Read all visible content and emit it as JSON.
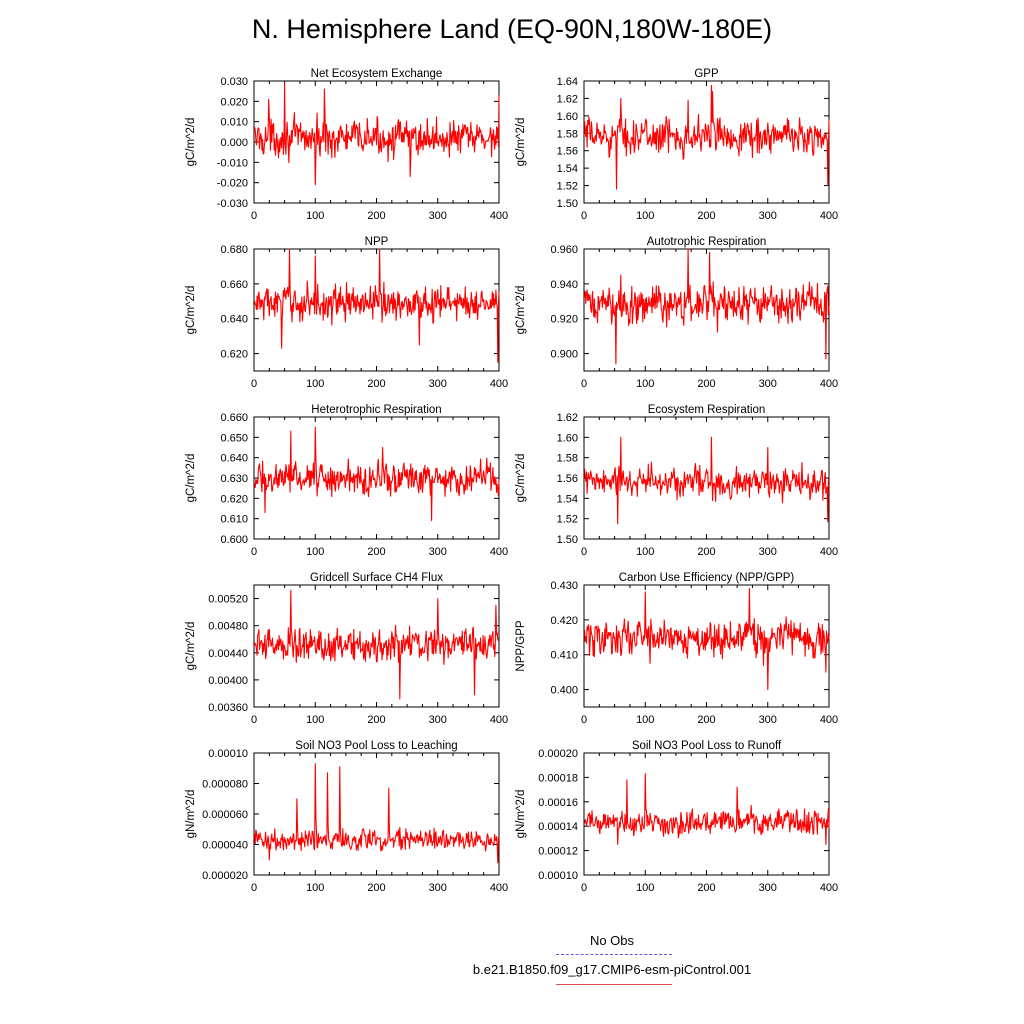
{
  "page": {
    "title": "N. Hemisphere Land (EQ-90N,180W-180E)",
    "legend": {
      "obs_label": "No Obs",
      "model_label": "b.e21.B1850.f09_g17.CMIP6-esm-piControl.001",
      "obs_color": "#5a5ad8",
      "model_color": "#e05050"
    }
  },
  "chart_data": [
    {
      "type": "line",
      "title": "Net Ecosystem Exchange",
      "ylabel": "gC/m^2/d",
      "xlabel": "",
      "xlim": [
        0,
        400
      ],
      "ylim": [
        -0.03,
        0.03
      ],
      "xticks": [
        "0",
        "100",
        "200",
        "300",
        "400"
      ],
      "yticks": [
        "-0.030",
        "-0.020",
        "-0.010",
        "0.000",
        "0.010",
        "0.020",
        "0.030"
      ],
      "series": [
        {
          "color": "#ff0000",
          "x_start": 1,
          "x_end": 400,
          "mean": 0.002,
          "amplitude": 0.008,
          "peaks": [
            [
              50,
              0.029
            ],
            [
              100,
              -0.021
            ],
            [
              115,
              0.026
            ],
            [
              400,
              0.023
            ],
            [
              255,
              -0.017
            ],
            [
              24,
              0.021
            ]
          ]
        }
      ]
    },
    {
      "type": "line",
      "title": "GPP",
      "ylabel": "gC/m^2/d",
      "xlabel": "",
      "xlim": [
        0,
        400
      ],
      "ylim": [
        1.5,
        1.64
      ],
      "xticks": [
        "0",
        "100",
        "200",
        "300",
        "400"
      ],
      "yticks": [
        "1.50",
        "1.52",
        "1.54",
        "1.56",
        "1.58",
        "1.60",
        "1.62",
        "1.64"
      ],
      "series": [
        {
          "color": "#ff0000",
          "x_start": 1,
          "x_end": 400,
          "mean": 1.577,
          "amplitude": 0.018,
          "peaks": [
            [
              53,
              1.516
            ],
            [
              208,
              1.635
            ],
            [
              210,
              1.628
            ],
            [
              398,
              1.52
            ],
            [
              60,
              1.62
            ],
            [
              170,
              1.618
            ]
          ]
        }
      ]
    },
    {
      "type": "line",
      "title": "NPP",
      "ylabel": "gC/m^2/d",
      "xlabel": "",
      "xlim": [
        0,
        400
      ],
      "ylim": [
        0.61,
        0.68
      ],
      "xticks": [
        "0",
        "100",
        "200",
        "300",
        "400"
      ],
      "yticks": [
        "0.620",
        "0.640",
        "0.660",
        "0.680"
      ],
      "series": [
        {
          "color": "#ff0000",
          "x_start": 1,
          "x_end": 400,
          "mean": 0.649,
          "amplitude": 0.009,
          "peaks": [
            [
              58,
              0.68
            ],
            [
              205,
              0.68
            ],
            [
              398,
              0.615
            ],
            [
              45,
              0.623
            ],
            [
              100,
              0.676
            ],
            [
              270,
              0.625
            ]
          ]
        }
      ]
    },
    {
      "type": "line",
      "title": "Autotrophic Respiration",
      "ylabel": "gC/m^2/d",
      "xlabel": "",
      "xlim": [
        0,
        400
      ],
      "ylim": [
        0.89,
        0.96
      ],
      "xticks": [
        "0",
        "100",
        "200",
        "300",
        "400"
      ],
      "yticks": [
        "0.900",
        "0.920",
        "0.940",
        "0.960"
      ],
      "series": [
        {
          "color": "#ff0000",
          "x_start": 1,
          "x_end": 400,
          "mean": 0.928,
          "amplitude": 0.01,
          "peaks": [
            [
              52,
              0.894
            ],
            [
              170,
              0.96
            ],
            [
              205,
              0.958
            ],
            [
              395,
              0.897
            ],
            [
              60,
              0.945
            ]
          ]
        }
      ]
    },
    {
      "type": "line",
      "title": "Heterotrophic Respiration",
      "ylabel": "gC/m^2/d",
      "xlabel": "",
      "xlim": [
        0,
        400
      ],
      "ylim": [
        0.6,
        0.66
      ],
      "xticks": [
        "0",
        "100",
        "200",
        "300",
        "400"
      ],
      "yticks": [
        "0.600",
        "0.610",
        "0.620",
        "0.630",
        "0.640",
        "0.650",
        "0.660"
      ],
      "series": [
        {
          "color": "#ff0000",
          "x_start": 1,
          "x_end": 400,
          "mean": 0.63,
          "amplitude": 0.007,
          "peaks": [
            [
              60,
              0.653
            ],
            [
              100,
              0.655
            ],
            [
              290,
              0.609
            ],
            [
              18,
              0.613
            ],
            [
              210,
              0.645
            ]
          ]
        }
      ]
    },
    {
      "type": "line",
      "title": "Ecosystem Respiration",
      "ylabel": "gC/m^2/d",
      "xlabel": "",
      "xlim": [
        0,
        400
      ],
      "ylim": [
        1.5,
        1.62
      ],
      "xticks": [
        "0",
        "100",
        "200",
        "300",
        "400"
      ],
      "yticks": [
        "1.50",
        "1.52",
        "1.54",
        "1.56",
        "1.58",
        "1.60",
        "1.62"
      ],
      "series": [
        {
          "color": "#ff0000",
          "x_start": 1,
          "x_end": 400,
          "mean": 1.556,
          "amplitude": 0.014,
          "peaks": [
            [
              55,
              1.515
            ],
            [
              208,
              1.6
            ],
            [
              398,
              1.517
            ],
            [
              60,
              1.6
            ],
            [
              300,
              1.59
            ]
          ]
        }
      ]
    },
    {
      "type": "line",
      "title": "Gridcell Surface CH4 Flux",
      "ylabel": "gC/m^2/d",
      "xlabel": "",
      "xlim": [
        0,
        400
      ],
      "ylim": [
        0.0036,
        0.0054
      ],
      "xticks": [
        "0",
        "100",
        "200",
        "300",
        "400"
      ],
      "yticks": [
        "0.00360",
        "0.00400",
        "0.00440",
        "0.00480",
        "0.00520"
      ],
      "series": [
        {
          "color": "#ff0000",
          "x_start": 1,
          "x_end": 400,
          "mean": 0.00452,
          "amplitude": 0.00022,
          "peaks": [
            [
              60,
              0.00532
            ],
            [
              238,
              0.00372
            ],
            [
              360,
              0.00378
            ],
            [
              300,
              0.0052
            ],
            [
              395,
              0.0051
            ]
          ]
        }
      ]
    },
    {
      "type": "line",
      "title": "Carbon Use Efficiency (NPP/GPP)",
      "ylabel": "NPP/GPP",
      "xlabel": "",
      "xlim": [
        0,
        400
      ],
      "ylim": [
        0.395,
        0.43
      ],
      "xticks": [
        "0",
        "100",
        "200",
        "300",
        "400"
      ],
      "yticks": [
        "0.400",
        "0.410",
        "0.420",
        "0.430"
      ],
      "series": [
        {
          "color": "#ff0000",
          "x_start": 1,
          "x_end": 400,
          "mean": 0.415,
          "amplitude": 0.005,
          "peaks": [
            [
              270,
              0.429
            ],
            [
              300,
              0.4
            ],
            [
              100,
              0.428
            ],
            [
              395,
              0.405
            ]
          ]
        }
      ]
    },
    {
      "type": "line",
      "title": "Soil NO3 Pool Loss to Leaching",
      "ylabel": "gN/m^2/d",
      "xlabel": "",
      "xlim": [
        0,
        400
      ],
      "ylim": [
        2e-05,
        0.0001
      ],
      "xticks": [
        "0",
        "100",
        "200",
        "300",
        "400"
      ],
      "yticks": [
        "0.000020",
        "0.000040",
        "0.000060",
        "0.000080",
        "0.00010"
      ],
      "series": [
        {
          "color": "#ff0000",
          "x_start": 1,
          "x_end": 400,
          "mean": 4.3e-05,
          "amplitude": 6e-06,
          "peaks": [
            [
              100,
              9.3e-05
            ],
            [
              140,
              9.1e-05
            ],
            [
              120,
              8.7e-05
            ],
            [
              220,
              7.7e-05
            ],
            [
              70,
              7e-05
            ],
            [
              25,
              3e-05
            ],
            [
              398,
              2.8e-05
            ]
          ]
        }
      ]
    },
    {
      "type": "line",
      "title": "Soil NO3 Pool Loss to Runoff",
      "ylabel": "gN/m^2/d",
      "xlabel": "",
      "xlim": [
        0,
        400
      ],
      "ylim": [
        0.0001,
        0.0002
      ],
      "xticks": [
        "0",
        "100",
        "200",
        "300",
        "400"
      ],
      "yticks": [
        "0.00010",
        "0.00012",
        "0.00014",
        "0.00016",
        "0.00018",
        "0.00020"
      ],
      "series": [
        {
          "color": "#ff0000",
          "x_start": 1,
          "x_end": 400,
          "mean": 0.000143,
          "amplitude": 9e-06,
          "peaks": [
            [
              100,
              0.000183
            ],
            [
              70,
              0.000178
            ],
            [
              55,
              0.000125
            ],
            [
              395,
              0.000125
            ],
            [
              250,
              0.000172
            ]
          ]
        }
      ]
    }
  ]
}
